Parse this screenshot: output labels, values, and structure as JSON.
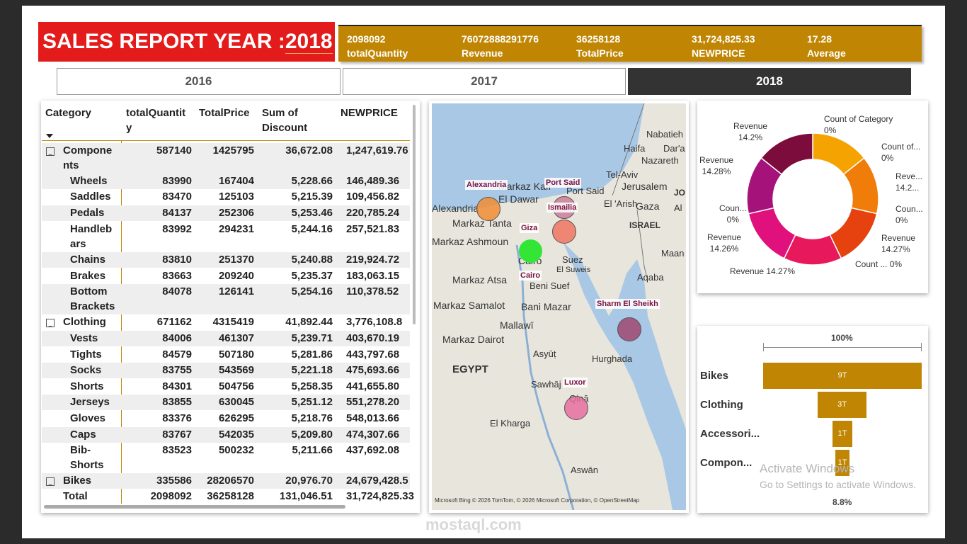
{
  "header": {
    "title_prefix": "SALES REPORT YEAR :",
    "title_year": "2018"
  },
  "kpis": [
    {
      "value": "2098092",
      "label": "totalQuantity"
    },
    {
      "value": "76072888291776",
      "label": "Revenue"
    },
    {
      "value": "36258128",
      "label": "TotalPrice"
    },
    {
      "value": "31,724,825.33",
      "label": "NEWPRICE"
    },
    {
      "value": "17.28",
      "label": "Average"
    }
  ],
  "year_slicer": {
    "options": [
      "2016",
      "2017",
      "2018"
    ],
    "selected": "2018"
  },
  "matrix": {
    "headers": {
      "category": "Category",
      "qty_1": "totalQuantit",
      "qty_2": "y",
      "price": "TotalPrice",
      "disc_1": "Sum of",
      "disc_2": "Discount",
      "newprice": "NEWPRICE"
    },
    "rows": {
      "r1": {
        "l1": "Compone",
        "l2": "nts",
        "qty": "587140",
        "price": "1425795",
        "disc": "36,672.08",
        "newp": "1,247,619.76"
      },
      "r2": {
        "l1": "Wheels",
        "qty": "83990",
        "price": "167404",
        "disc": "5,228.66",
        "newp": "146,489.36"
      },
      "r3": {
        "l1": "Saddles",
        "qty": "83470",
        "price": "125103",
        "disc": "5,215.39",
        "newp": "109,456.82"
      },
      "r4": {
        "l1": "Pedals",
        "qty": "84137",
        "price": "252306",
        "disc": "5,253.46",
        "newp": "220,785.24"
      },
      "r5": {
        "l1": "Handleb",
        "l2": "ars",
        "qty": "83992",
        "price": "294231",
        "disc": "5,244.16",
        "newp": "257,521.83"
      },
      "r6": {
        "l1": "Chains",
        "qty": "83810",
        "price": "251370",
        "disc": "5,240.88",
        "newp": "219,924.72"
      },
      "r7": {
        "l1": "Brakes",
        "qty": "83663",
        "price": "209240",
        "disc": "5,235.37",
        "newp": "183,063.15"
      },
      "r8": {
        "l1": "Bottom",
        "l2": "Brackets",
        "qty": "84078",
        "price": "126141",
        "disc": "5,254.16",
        "newp": "110,378.52"
      },
      "r9": {
        "l1": "Clothing",
        "qty": "671162",
        "price": "4315419",
        "disc": "41,892.44",
        "newp": "3,776,108.8"
      },
      "r10": {
        "l1": "Vests",
        "qty": "84006",
        "price": "461307",
        "disc": "5,239.71",
        "newp": "403,670.19"
      },
      "r11": {
        "l1": "Tights",
        "qty": "84579",
        "price": "507180",
        "disc": "5,281.86",
        "newp": "443,797.68"
      },
      "r12": {
        "l1": "Socks",
        "qty": "83755",
        "price": "543569",
        "disc": "5,221.18",
        "newp": "475,693.66"
      },
      "r13": {
        "l1": "Shorts",
        "qty": "84301",
        "price": "504756",
        "disc": "5,258.35",
        "newp": "441,655.80"
      },
      "r14": {
        "l1": "Jerseys",
        "qty": "83855",
        "price": "630045",
        "disc": "5,251.12",
        "newp": "551,278.20"
      },
      "r15": {
        "l1": "Gloves",
        "qty": "83376",
        "price": "626295",
        "disc": "5,218.76",
        "newp": "548,013.66"
      },
      "r16": {
        "l1": "Caps",
        "qty": "83767",
        "price": "542035",
        "disc": "5,209.80",
        "newp": "474,307.66"
      },
      "r17": {
        "l1": "Bib-",
        "l2": "Shorts",
        "qty": "83523",
        "price": "500232",
        "disc": "5,211.66",
        "newp": "437,692.08"
      },
      "r18": {
        "l1": "Bikes",
        "qty": "335586",
        "price": "28206570",
        "disc": "20,976.70",
        "newp": "24,679,428.5"
      },
      "r19": {
        "l1": "Total",
        "qty": "2098092",
        "price": "36258128",
        "disc": "131,046.51",
        "newp": "31,724,825.33"
      }
    }
  },
  "map": {
    "place_labels": {
      "nabatieh": "Nabatieh",
      "haifa": "Haifa",
      "darat": "Dar'a",
      "nazareth": "Nazareth",
      "telaviv": "Tel-Aviv",
      "jerusalem": "Jerusalem",
      "jo": "JO",
      "kafr": "Markaz Kafr",
      "eldawar": "El Dawar",
      "alexandria": "Alexandria",
      "portsaid": "Port Said",
      "arish": "El 'Arish",
      "gaza": "Gaza",
      "al": "Al",
      "tanta": "Markaz Tanta",
      "israel": "ISRAEL",
      "ashmoun": "Markaz Ashmoun",
      "cairo": "Cairo",
      "suez": "Suez",
      "elsuweis": "El Suweis",
      "maan": "Maan",
      "aqaba": "Aqaba",
      "atsa": "Markaz Atsa",
      "benisuef": "Beni Suef",
      "samalot": "Markaz Samalot",
      "banimazar": "Bani Mazar",
      "mallawi": "Mallawī",
      "dairot": "Markaz Dairot",
      "asyut": "Asyūṭ",
      "hurghada": "Hurghada",
      "egypt": "EGYPT",
      "sawhaj": "Sawhāj",
      "qina": "Qinā",
      "kharga": "El Kharga",
      "aswan": "Aswān"
    },
    "cities": {
      "alexandria": "Alexandria",
      "portsaid": "Port Said",
      "ismailia": "Ismailia",
      "giza": "Giza",
      "cairo": "Cairo",
      "sharm": "Sharm El Sheikh",
      "luxor": "Luxor"
    },
    "attribution": "Microsoft Bing   © 2026 TomTom, © 2026 Microsoft Corporation, © OpenStreetMap"
  },
  "donut": {
    "labels": {
      "l_countcat_1": "Count of Category",
      "l_countcat_2": "0%",
      "l_countof_1": "Count of...",
      "l_countof_2": "0%",
      "l_reve_1": "Reve...",
      "l_reve_2": "14.2...",
      "l_coun_r_1": "Coun...",
      "l_coun_r_2": "0%",
      "l_rev_r_1": "Revenue",
      "l_rev_r_2": "14.27%",
      "l_count_b": "Count ... 0%",
      "l_rev_b": "Revenue 14.27%",
      "l_rev_l3_1": "Revenue",
      "l_rev_l3_2": "14.26%",
      "l_coun_l_1": "Coun...",
      "l_coun_l_2": "0%",
      "l_rev_l2_1": "Revenue",
      "l_rev_l2_2": "14.28%",
      "l_rev_t_1": "Revenue",
      "l_rev_t_2": "14.2%"
    },
    "slice_colors": [
      "#f5a300",
      "#f07d0a",
      "#e5420f",
      "#e8185c",
      "#e0117d",
      "#a4127a",
      "#7c0c3c"
    ]
  },
  "funnel": {
    "top_label": "100%",
    "bottom_label": "8.8%",
    "items": [
      {
        "label": "Bikes",
        "value": "9T"
      },
      {
        "label": "Clothing",
        "value": "3T"
      },
      {
        "label": "Accessori...",
        "value": "1T"
      },
      {
        "label": "Compon...",
        "value": "1T"
      }
    ]
  },
  "watermarks": {
    "activate_1": "Activate Windows",
    "activate_2": "Go to Settings to activate Windows.",
    "site": "mostaql.com"
  }
}
